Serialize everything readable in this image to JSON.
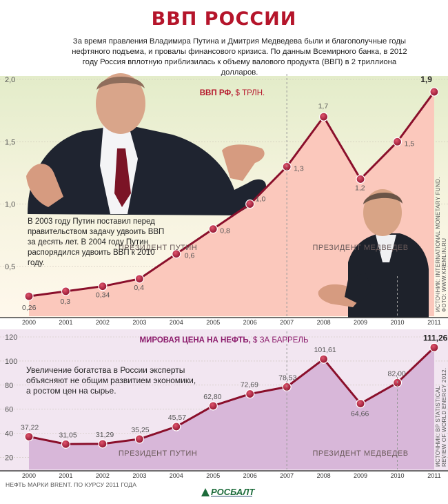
{
  "title": "ВВП РОССИИ",
  "intro": "За время правления Владимира Путина и Дмитрия Медведева были и благополучные годы нефтяного подъема, и провалы финансового кризиса. По данным Всемирного банка, в 2012 году Россия вплотную приблизилась к объему валового продукта (ВВП) в 2 триллиона долларов.",
  "notes": {
    "gdp": "В 2003 году Путин поставил перед правительством задачу удвоить ВВП за десять лет. В 2004 году Путин распорядился удвоить ВВП к 2010 году.",
    "oil": "Увеличение богатства в России эксперты объясняют не общим развитием экономики, а ростом цен на сырье."
  },
  "sources": {
    "gdp_line1": "ИСТОЧНИК: INTERNATIONAL MONETARY FUND.",
    "gdp_line2": "ФОТО: WWW.KREMLIN.RU",
    "oil_line1": "ИСТОЧНИК: BP STATISTICAL",
    "oil_line2": "REVIEW OF WORLD ENERGY 2012."
  },
  "footnote": "НЕФТЬ МАРКИ BRENT. ПО КУРСУ 2011 ГОДА",
  "logo": "РОСБАЛТ",
  "colors": {
    "accent": "#b5152b",
    "line": "#8a0f2b",
    "gdp_fill": "#fbc8bc",
    "gdp_bg_light": "#fff7ea",
    "gdp_bg_green": "#e6eed0",
    "oil_fill": "#d8b7d9",
    "oil_bg": "#f1e4f0",
    "oil_title": "#8b1a6b"
  },
  "chart_data": [
    {
      "type": "area",
      "title": "ВВП РФ,",
      "unit": "$ ТРЛН.",
      "categories": [
        "2000",
        "2001",
        "2002",
        "2003",
        "2004",
        "2005",
        "2006",
        "2007",
        "2008",
        "2009",
        "2010",
        "2011"
      ],
      "values": [
        0.26,
        0.3,
        0.34,
        0.4,
        0.6,
        0.8,
        1.0,
        1.3,
        1.7,
        1.2,
        1.5,
        1.9
      ],
      "value_labels": [
        "0,26",
        "0,3",
        "0,34",
        "0,4",
        "0,6",
        "0,8",
        "1,0",
        "1,3",
        "1,7",
        "1,2",
        "1,5",
        "1,9"
      ],
      "ylim": [
        0.1,
        2.0
      ],
      "y_ticks": [
        0.5,
        1.0,
        1.5,
        2.0
      ],
      "y_tick_labels": [
        "0,5",
        "1,0",
        "1,5",
        "2,0"
      ],
      "periods": [
        {
          "label": "ПРЕЗИДЕНТ ПУТИН",
          "from": "2000",
          "to": "2007"
        },
        {
          "label": "ПРЕЗИДЕНТ МЕДВЕДЕВ",
          "from": "2007",
          "to": "2011"
        }
      ],
      "grid": true
    },
    {
      "type": "area",
      "title": "МИРОВАЯ ЦЕНА НА НЕФТЬ,",
      "unit": "$ ЗА БАРРЕЛЬ",
      "categories": [
        "2000",
        "2001",
        "2002",
        "2003",
        "2004",
        "2005",
        "2006",
        "2007",
        "2008",
        "2009",
        "2010",
        "2011"
      ],
      "values": [
        37.22,
        31.05,
        31.29,
        35.25,
        45.57,
        62.8,
        72.69,
        78.53,
        101.61,
        64.66,
        82.0,
        111.26
      ],
      "value_labels": [
        "37,22",
        "31,05",
        "31,29",
        "35,25",
        "45,57",
        "62,80",
        "72,69",
        "78,53",
        "101,61",
        "64,66",
        "82,00",
        "111,26"
      ],
      "ylim": [
        10,
        120
      ],
      "y_ticks": [
        20,
        40,
        60,
        80,
        100,
        120
      ],
      "y_tick_labels": [
        "20",
        "40",
        "60",
        "80",
        "100",
        "120"
      ],
      "periods": [
        {
          "label": "ПРЕЗИДЕНТ ПУТИН",
          "from": "2000",
          "to": "2007"
        },
        {
          "label": "ПРЕЗИДЕНТ МЕДВЕДЕВ",
          "from": "2007",
          "to": "2011"
        }
      ],
      "grid": true
    }
  ]
}
